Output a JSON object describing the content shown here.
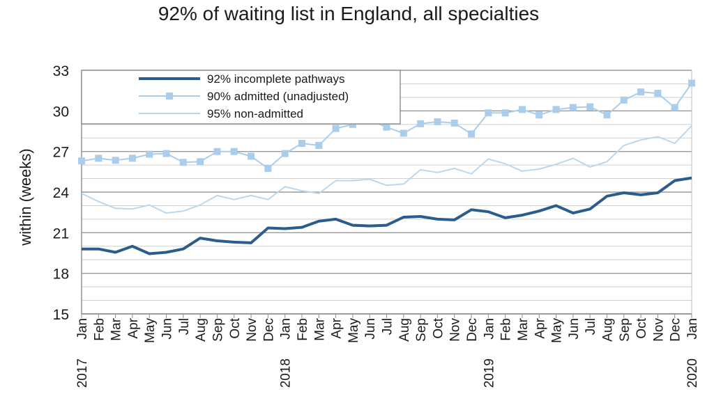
{
  "chart_data": {
    "type": "line",
    "title": "92% of waiting list in England, all specialties",
    "ylabel": "within  (weeks)",
    "xlabel": "",
    "ylim": [
      15,
      33
    ],
    "yticks": [
      15,
      18,
      21,
      24,
      27,
      30,
      33
    ],
    "grid": true,
    "legend_position": "top-left",
    "x_labels": [
      "Jan",
      "Feb",
      "Mar",
      "Apr",
      "May",
      "Jun",
      "Jul",
      "Aug",
      "Sep",
      "Oct",
      "Nov",
      "Dec",
      "Jan",
      "Feb",
      "Mar",
      "Apr",
      "May",
      "Jun",
      "Jul",
      "Aug",
      "Sep",
      "Oct",
      "Nov",
      "Dec",
      "Jan",
      "Feb",
      "Mar",
      "Apr",
      "May",
      "Jun",
      "Jul",
      "Aug",
      "Sep",
      "Oct",
      "Nov",
      "Dec",
      "Jan"
    ],
    "year_labels": [
      {
        "index": 0,
        "label": "2017"
      },
      {
        "index": 12,
        "label": "2018"
      },
      {
        "index": 24,
        "label": "2019"
      },
      {
        "index": 36,
        "label": "2020"
      }
    ],
    "series": [
      {
        "name": "92% incomplete pathways",
        "color": "#2b5c8c",
        "style": "thick",
        "values": [
          19.8,
          19.8,
          19.55,
          20.0,
          19.45,
          19.55,
          19.8,
          20.6,
          20.4,
          20.3,
          20.25,
          21.35,
          21.3,
          21.4,
          21.85,
          22.0,
          21.55,
          21.5,
          21.55,
          22.15,
          22.2,
          22.0,
          21.95,
          22.7,
          22.55,
          22.1,
          22.3,
          22.6,
          23.0,
          22.45,
          22.75,
          23.7,
          23.95,
          23.8,
          23.95,
          24.85,
          25.05
        ]
      },
      {
        "name": "90% admitted (unadjusted)",
        "color": "#a9cdea",
        "style": "markers",
        "values": [
          26.3,
          26.5,
          26.35,
          26.5,
          26.8,
          26.85,
          26.2,
          26.25,
          27.0,
          27.0,
          26.65,
          25.75,
          26.85,
          27.6,
          27.45,
          28.7,
          29.0,
          29.3,
          28.8,
          28.35,
          29.05,
          29.2,
          29.1,
          28.3,
          29.85,
          29.85,
          30.1,
          29.7,
          30.1,
          30.25,
          30.3,
          29.7,
          30.8,
          31.4,
          31.3,
          30.25,
          32.05
        ]
      },
      {
        "name": "95% non-admitted",
        "color": "#b9d8f0",
        "style": "thin",
        "values": [
          23.9,
          23.3,
          22.8,
          22.75,
          23.05,
          22.45,
          22.6,
          23.05,
          23.75,
          23.45,
          23.75,
          23.45,
          24.4,
          24.1,
          23.9,
          24.85,
          24.85,
          24.95,
          24.5,
          24.6,
          25.65,
          25.45,
          25.75,
          25.35,
          26.45,
          26.1,
          25.55,
          25.7,
          26.05,
          26.5,
          25.85,
          26.25,
          27.45,
          27.85,
          28.1,
          27.6,
          28.9
        ]
      }
    ]
  }
}
